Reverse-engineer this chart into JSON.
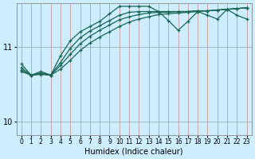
{
  "xlabel": "Humidex (Indice chaleur)",
  "bg_color": "#cceeff",
  "grid_color_v": "#ff9999",
  "grid_color_h": "#aacccc",
  "line_color": "#1a6655",
  "x_ticks": [
    0,
    1,
    2,
    3,
    4,
    5,
    6,
    7,
    8,
    9,
    10,
    11,
    12,
    13,
    14,
    15,
    16,
    17,
    18,
    19,
    20,
    21,
    22,
    23
  ],
  "y_ticks": [
    10,
    11
  ],
  "ylim": [
    9.82,
    11.58
  ],
  "xlim": [
    -0.5,
    23.5
  ],
  "upper_x": [
    0,
    1,
    2,
    3,
    4,
    5,
    6,
    7,
    8,
    9,
    10,
    11,
    12,
    13,
    14,
    15,
    16,
    17,
    18,
    19,
    20,
    21,
    22,
    23
  ],
  "upper_y": [
    10.77,
    10.62,
    10.67,
    10.62,
    10.88,
    11.08,
    11.2,
    11.27,
    11.34,
    11.44,
    11.54,
    11.54,
    11.54,
    11.54,
    11.47,
    11.35,
    11.22,
    11.34,
    11.47,
    11.42,
    11.37,
    11.5,
    11.42,
    11.37
  ],
  "mid1_x": [
    0,
    1,
    2,
    3,
    4,
    5,
    6,
    7,
    8,
    9,
    10,
    11,
    12,
    13,
    14,
    15,
    16,
    17,
    18,
    19,
    20,
    21,
    22,
    23
  ],
  "mid1_y": [
    10.72,
    10.62,
    10.65,
    10.62,
    10.79,
    10.98,
    11.12,
    11.21,
    11.28,
    11.35,
    11.42,
    11.46,
    11.47,
    11.47,
    11.47,
    11.47,
    11.47,
    11.47,
    11.48,
    11.48,
    11.49,
    11.5,
    11.51,
    11.52
  ],
  "mid2_x": [
    0,
    1,
    2,
    3,
    4,
    5,
    6,
    7,
    8,
    9,
    10,
    11,
    12,
    13,
    14,
    15,
    16,
    17,
    18,
    19,
    20,
    21,
    22,
    23
  ],
  "mid2_y": [
    10.69,
    10.62,
    10.64,
    10.62,
    10.75,
    10.9,
    11.04,
    11.14,
    11.22,
    11.29,
    11.36,
    11.4,
    11.43,
    11.45,
    11.46,
    11.46,
    11.47,
    11.47,
    11.48,
    11.48,
    11.49,
    11.5,
    11.51,
    11.52
  ],
  "low_x": [
    0,
    1,
    2,
    3,
    4,
    5,
    6,
    7,
    8,
    9,
    10,
    11,
    12,
    13,
    14,
    15,
    16,
    17,
    18,
    19,
    20,
    21,
    22,
    23
  ],
  "low_y": [
    10.67,
    10.62,
    10.63,
    10.62,
    10.7,
    10.82,
    10.95,
    11.05,
    11.13,
    11.2,
    11.27,
    11.33,
    11.37,
    11.4,
    11.43,
    11.44,
    11.45,
    11.46,
    11.47,
    11.48,
    11.49,
    11.5,
    11.51,
    11.52
  ]
}
